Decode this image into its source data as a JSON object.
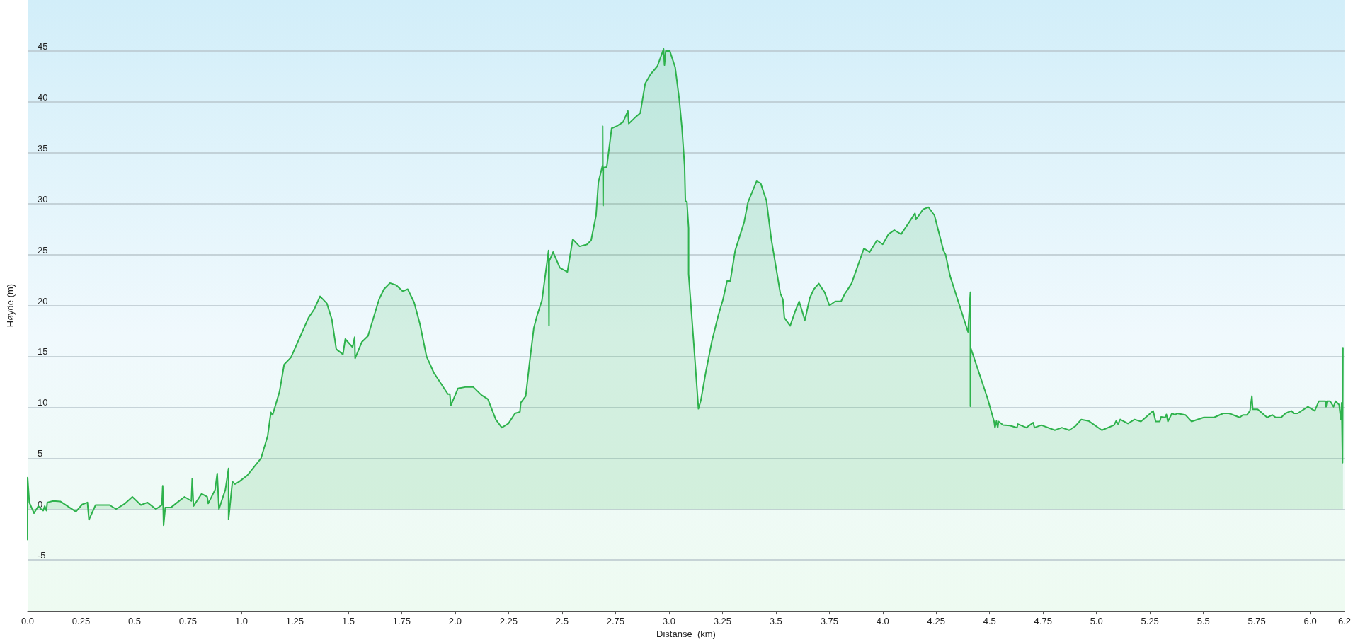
{
  "chart_data": {
    "type": "area",
    "xlabel": "Distanse  (km)",
    "ylabel": "Høyde (m)",
    "xlim": [
      0,
      6.16
    ],
    "ylim": [
      -10,
      50
    ],
    "xticks": [
      {
        "value": 0,
        "label": "0.0"
      },
      0.25,
      0.5,
      0.75,
      {
        "value": 1,
        "label": "1.0"
      },
      1.25,
      1.5,
      1.75,
      {
        "value": 2,
        "label": "2.0"
      },
      2.25,
      2.5,
      2.75,
      {
        "value": 3,
        "label": "3.0"
      },
      3.25,
      3.5,
      3.75,
      {
        "value": 4,
        "label": "4.0"
      },
      4.25,
      4.5,
      4.75,
      {
        "value": 5,
        "label": "5.0"
      },
      5.25,
      5.5,
      5.75,
      {
        "value": 6,
        "label": "6.0"
      },
      {
        "value": 6.16,
        "label": "6.2"
      }
    ],
    "yticks": [
      -5,
      0,
      5,
      10,
      15,
      20,
      25,
      30,
      35,
      40,
      45
    ],
    "grid": "y",
    "marker": "none",
    "line_style": "solid",
    "series": [
      {
        "color": "#2eb24c",
        "x": [
          0,
          0,
          0.008,
          0.03,
          0.05,
          0.063,
          0.073,
          0.08,
          0.088,
          0.092,
          0.12,
          0.153,
          0.197,
          0.226,
          0.255,
          0.28,
          0.287,
          0.318,
          0.383,
          0.414,
          0.456,
          0.49,
          0.53,
          0.56,
          0.6,
          0.628,
          0.632,
          0.636,
          0.644,
          0.67,
          0.7,
          0.734,
          0.766,
          0.77,
          0.776,
          0.814,
          0.84,
          0.845,
          0.877,
          0.887,
          0.895,
          0.925,
          0.94,
          0.94,
          0.958,
          0.97,
          0.99,
          1.027,
          1.092,
          1.123,
          1.138,
          1.146,
          1.178,
          1.2,
          1.232,
          1.314,
          1.34,
          1.368,
          1.4,
          1.423,
          1.444,
          1.475,
          1.486,
          1.52,
          1.53,
          1.532,
          1.563,
          1.592,
          1.644,
          1.667,
          1.695,
          1.724,
          1.755,
          1.778,
          1.808,
          1.835,
          1.866,
          1.9,
          1.966,
          1.975,
          1.98,
          2.013,
          2.052,
          2.084,
          2.123,
          2.153,
          2.19,
          2.218,
          2.249,
          2.28,
          2.303,
          2.307,
          2.33,
          2.349,
          2.368,
          2.383,
          2.406,
          2.437,
          2.439,
          2.44,
          2.458,
          2.49,
          2.525,
          2.55,
          2.582,
          2.617,
          2.636,
          2.659,
          2.67,
          2.69,
          2.69,
          2.692,
          2.693,
          2.709,
          2.732,
          2.755,
          2.785,
          2.808,
          2.812,
          2.839,
          2.866,
          2.889,
          2.914,
          2.946,
          2.975,
          2.979,
          2.985,
          3.004,
          3.029,
          3.048,
          3.061,
          3.073,
          3.077,
          3.084,
          3.092,
          3.092,
          3.115,
          3.138,
          3.149,
          3.172,
          3.201,
          3.23,
          3.253,
          3.272,
          3.287,
          3.31,
          3.352,
          3.37,
          3.41,
          3.429,
          3.456,
          3.479,
          3.521,
          3.533,
          3.54,
          3.567,
          3.59,
          3.609,
          3.636,
          3.659,
          3.678,
          3.701,
          3.728,
          3.751,
          3.778,
          3.805,
          3.824,
          3.831,
          3.854,
          3.912,
          3.939,
          3.973,
          4.0,
          4.027,
          4.054,
          4.086,
          4.151,
          4.156,
          4.189,
          4.214,
          4.242,
          4.284,
          4.294,
          4.315,
          4.399,
          4.41,
          4.41,
          4.412,
          4.49,
          4.521,
          4.525,
          4.532,
          4.538,
          4.542,
          4.563,
          4.595,
          4.628,
          4.632,
          4.672,
          4.704,
          4.71,
          4.742,
          4.805,
          4.838,
          4.872,
          4.901,
          4.929,
          4.964,
          5.025,
          5.082,
          5.092,
          5.101,
          5.111,
          5.147,
          5.178,
          5.208,
          5.265,
          5.277,
          5.296,
          5.302,
          5.321,
          5.327,
          5.334,
          5.353,
          5.368,
          5.376,
          5.416,
          5.445,
          5.502,
          5.55,
          5.593,
          5.62,
          5.67,
          5.685,
          5.704,
          5.718,
          5.727,
          5.731,
          5.754,
          5.798,
          5.823,
          5.838,
          5.864,
          5.884,
          5.912,
          5.922,
          5.941,
          5.989,
          6.021,
          6.04,
          6.071,
          6.074,
          6.078,
          6.093,
          6.109,
          6.118,
          6.135,
          6.143,
          6.147,
          6.151,
          6.153
        ],
        "values": [
          -3,
          3.1,
          0.65,
          -0.4,
          0.3,
          0,
          -0.15,
          0.3,
          -0.15,
          0.65,
          0.8,
          0.75,
          0.15,
          -0.25,
          0.45,
          0.65,
          -1.05,
          0.4,
          0.4,
          0,
          0.55,
          1.2,
          0.4,
          0.65,
          0,
          0.4,
          2.3,
          -1.6,
          0.15,
          0.15,
          0.65,
          1.2,
          0.8,
          3,
          0.3,
          1.5,
          1.2,
          0.55,
          1.9,
          3.5,
          0,
          1.9,
          4,
          -1,
          2.7,
          2.45,
          2.7,
          3.3,
          5,
          7.2,
          9.5,
          9.25,
          11.5,
          14.2,
          14.9,
          18.8,
          19.6,
          20.9,
          20.2,
          18.65,
          15.7,
          15.2,
          16.7,
          15.9,
          16.9,
          14.8,
          16.4,
          17,
          20.6,
          21.6,
          22.2,
          22,
          21.4,
          21.6,
          20.3,
          18.2,
          15,
          13.4,
          11.3,
          11.3,
          10.2,
          11.85,
          12,
          12,
          11.2,
          10.8,
          8.8,
          8,
          8.4,
          9.4,
          9.55,
          10.45,
          11.1,
          14.55,
          17.8,
          19,
          20.5,
          25.4,
          18,
          24.35,
          25.25,
          23.7,
          23.3,
          26.5,
          25.8,
          26,
          26.4,
          28.85,
          32.1,
          33.8,
          37.6,
          29.8,
          33.55,
          33.6,
          37.4,
          37.6,
          38,
          39.1,
          37.85,
          38.4,
          38.9,
          41.8,
          42.7,
          43.5,
          45.2,
          43.6,
          45,
          45,
          43.4,
          40.3,
          37.4,
          33.75,
          30.2,
          30.2,
          27.6,
          23.1,
          16.6,
          9.85,
          10.65,
          13.4,
          16.5,
          18.95,
          20.6,
          22.4,
          22.4,
          25.4,
          28.2,
          30.15,
          32.2,
          32,
          30.3,
          26.5,
          21.2,
          20.6,
          18.8,
          18,
          19.4,
          20.4,
          18.55,
          20.75,
          21.6,
          22.15,
          21.3,
          20,
          20.4,
          20.4,
          21.2,
          21.4,
          22.15,
          25.6,
          25.25,
          26.4,
          26,
          27,
          27.4,
          27,
          29.05,
          28.45,
          29.45,
          29.65,
          28.85,
          25.4,
          25,
          22.9,
          17.4,
          21.3,
          10.1,
          15.8,
          10.9,
          8.6,
          8,
          8.65,
          8,
          8.6,
          8.25,
          8.2,
          8,
          8.35,
          8,
          8.5,
          8,
          8.25,
          7.75,
          8,
          7.75,
          8.15,
          8.8,
          8.65,
          7.75,
          8.25,
          8.65,
          8.35,
          8.8,
          8.4,
          8.8,
          8.6,
          9.65,
          8.6,
          8.6,
          9.05,
          9,
          9.3,
          8.6,
          9.4,
          9.25,
          9.4,
          9.25,
          8.6,
          9,
          9,
          9.4,
          9.4,
          9,
          9.25,
          9.25,
          9.65,
          11.1,
          9.8,
          9.8,
          9,
          9.25,
          9,
          9,
          9.4,
          9.65,
          9.4,
          9.4,
          10.05,
          9.65,
          10.6,
          10.6,
          10.05,
          10.6,
          10.6,
          10.05,
          10.6,
          10.25,
          8.8,
          10.45,
          4.55,
          15.85
        ]
      }
    ]
  }
}
